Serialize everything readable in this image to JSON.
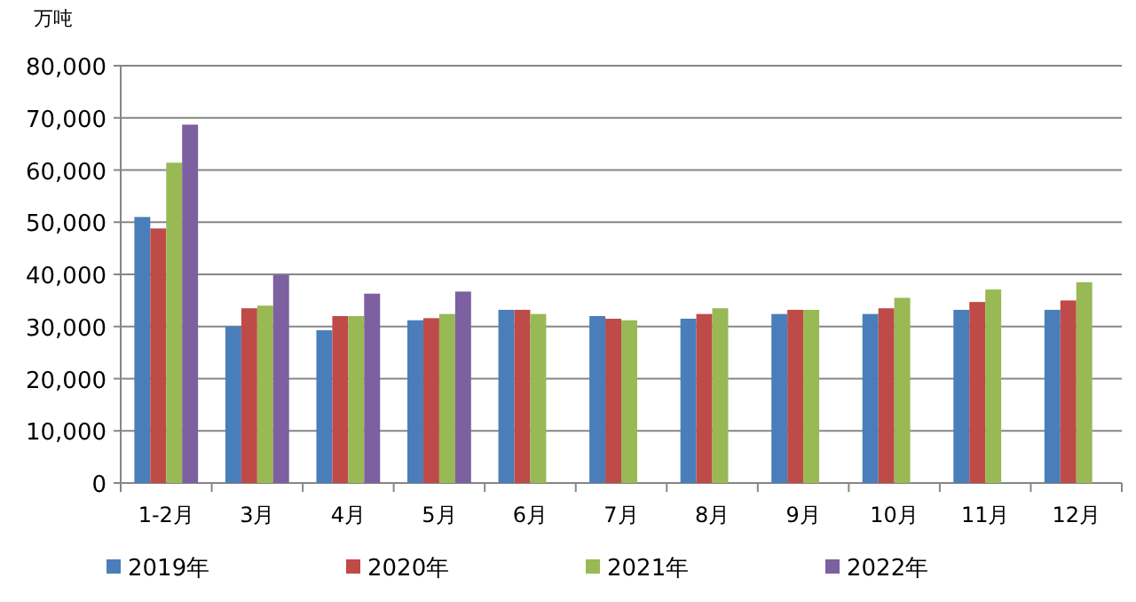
{
  "chart_data": {
    "type": "bar",
    "ylabel": "万吨",
    "categories": [
      "1-2月",
      "3月",
      "4月",
      "5月",
      "6月",
      "7月",
      "8月",
      "9月",
      "10月",
      "11月",
      "12月"
    ],
    "series": [
      {
        "name": "2019年",
        "color": "#4a7ebb",
        "values": [
          51000,
          30000,
          29300,
          31200,
          33200,
          32000,
          31500,
          32400,
          32400,
          33200,
          33200
        ]
      },
      {
        "name": "2020年",
        "color": "#be4b48",
        "values": [
          48800,
          33500,
          32000,
          31600,
          33200,
          31500,
          32400,
          33200,
          33500,
          34700,
          35000
        ]
      },
      {
        "name": "2021年",
        "color": "#98b954",
        "values": [
          61400,
          34000,
          32000,
          32400,
          32400,
          31200,
          33500,
          33200,
          35500,
          37100,
          38500
        ]
      },
      {
        "name": "2022年",
        "color": "#7d60a0",
        "values": [
          68700,
          39900,
          36300,
          36700,
          null,
          null,
          null,
          null,
          null,
          null,
          null
        ]
      }
    ],
    "ylim": [
      0,
      80000
    ],
    "yticks": [
      {
        "value": 0,
        "label": "0"
      },
      {
        "value": 10000,
        "label": "10,000"
      },
      {
        "value": 20000,
        "label": "20,000"
      },
      {
        "value": 30000,
        "label": "30,000"
      },
      {
        "value": 40000,
        "label": "40,000"
      },
      {
        "value": 50000,
        "label": "50,000"
      },
      {
        "value": 60000,
        "label": "60,000"
      },
      {
        "value": 70000,
        "label": "70,000"
      },
      {
        "value": 80000,
        "label": "80,000"
      }
    ],
    "grid": "y",
    "legend": "bottom"
  }
}
